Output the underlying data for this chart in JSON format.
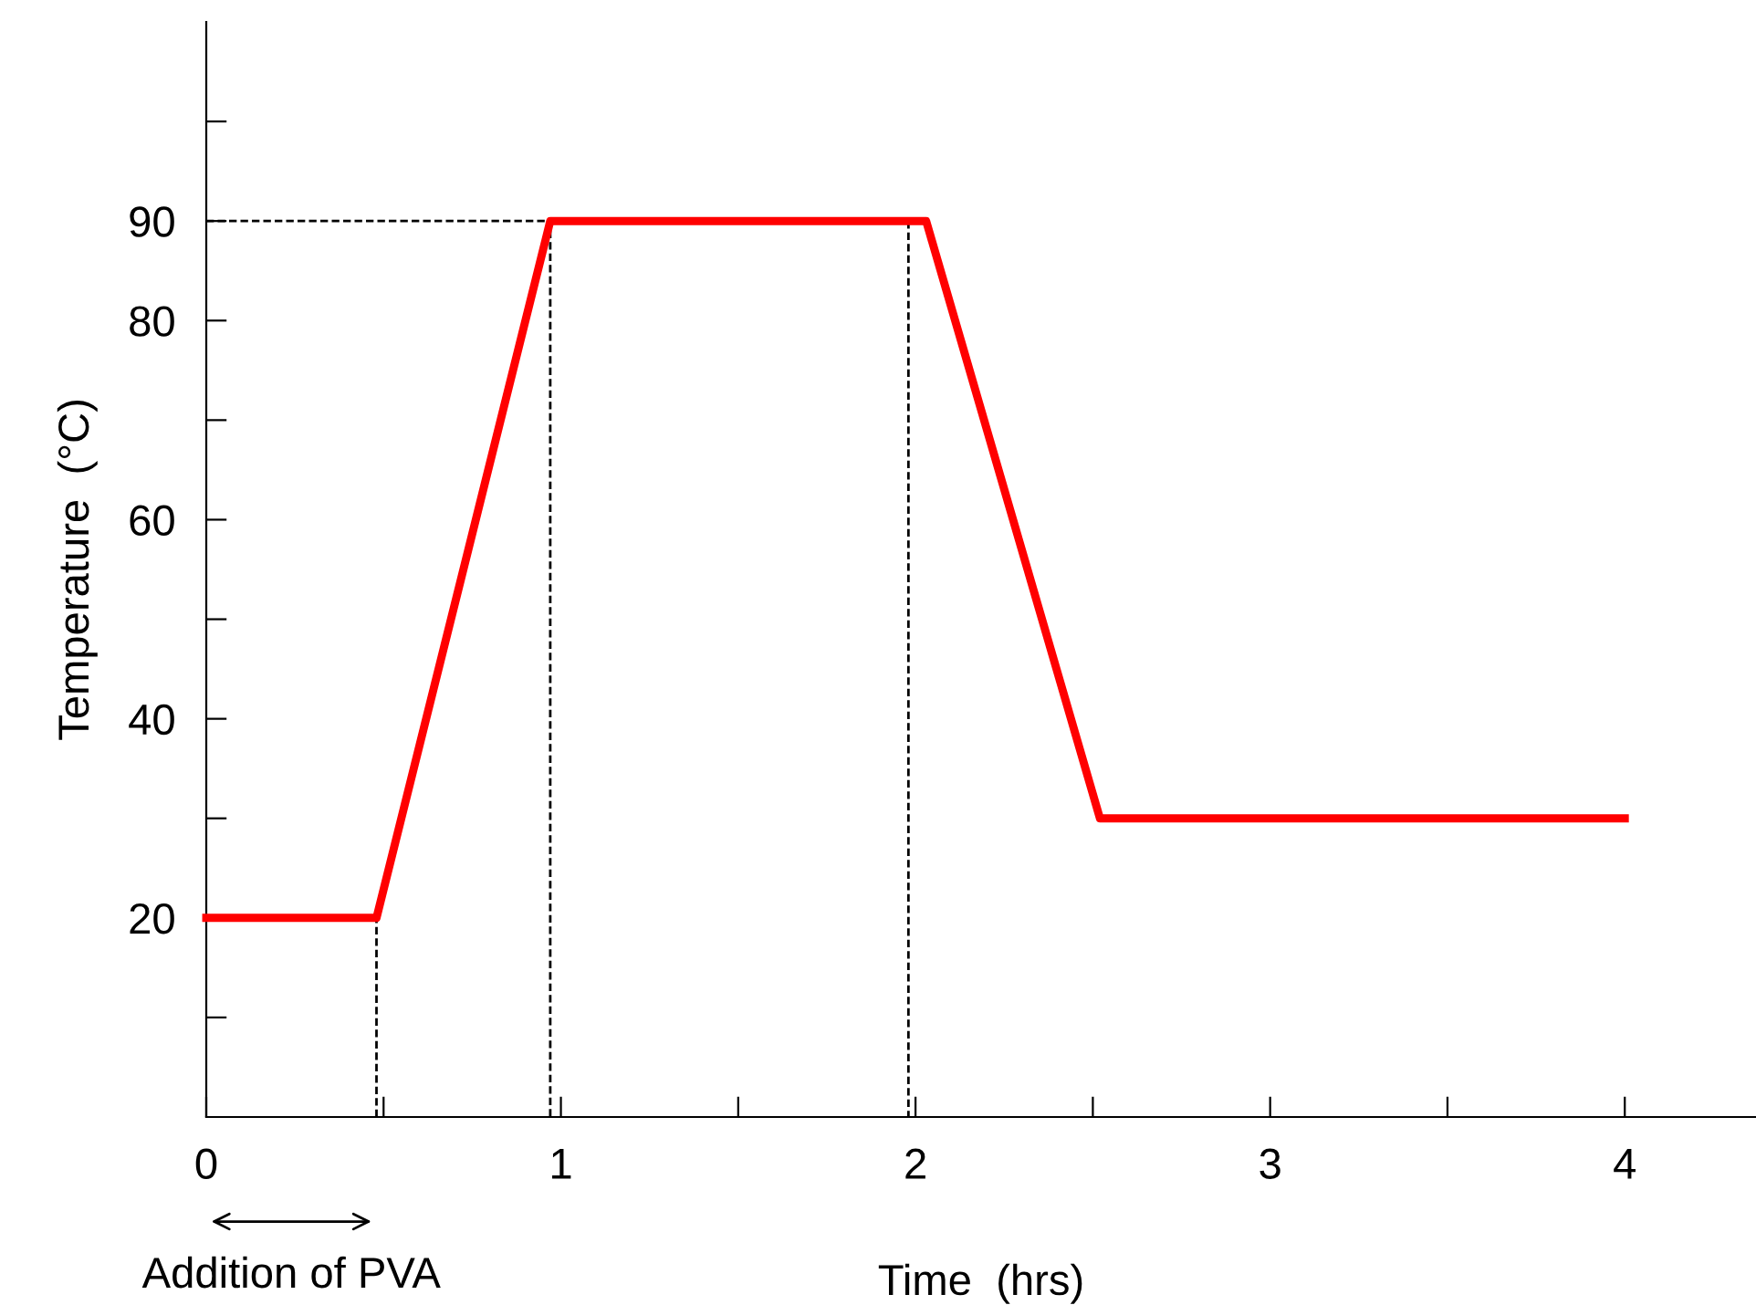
{
  "chart_data": {
    "type": "line",
    "xlabel": "Time  (hrs)",
    "ylabel": "Temperature  (°C)",
    "annotations": [
      "Addition of PVA"
    ],
    "series": [
      {
        "color": "#ff0000",
        "x": [
          0,
          0.48,
          0.97,
          2.03,
          2.52,
          4
        ],
        "values": [
          20,
          20,
          90,
          90,
          30,
          30
        ],
        "line_style": "solid"
      },
      {
        "color": "#000000",
        "x": [
          0.48,
          0.48
        ],
        "values": [
          0,
          20
        ],
        "line_style": "dashed"
      },
      {
        "color": "#000000",
        "x": [
          0,
          0.97,
          0.97
        ],
        "values": [
          90,
          90,
          0
        ],
        "line_style": "dashed"
      },
      {
        "color": "#000000",
        "x": [
          1.98,
          1.98
        ],
        "values": [
          90,
          0
        ],
        "line_style": "dashed"
      }
    ],
    "xlim": [
      0,
      4.37
    ],
    "ylim": [
      0,
      110
    ],
    "xticks": [
      0,
      {
        "value": 0.5,
        "label": null
      },
      1,
      {
        "value": 1.5,
        "label": null
      },
      2,
      {
        "value": 2.5,
        "label": null
      },
      3,
      {
        "value": 3.5,
        "label": null
      },
      4
    ],
    "yticks": [
      {
        "value": 10,
        "label": null
      },
      20,
      {
        "value": 30,
        "label": null
      },
      40,
      {
        "value": 50,
        "label": null
      },
      60,
      {
        "value": 70,
        "label": null
      },
      80,
      90,
      {
        "value": 100,
        "label": null
      }
    ],
    "grid": false,
    "legend": false,
    "marker": "none"
  }
}
